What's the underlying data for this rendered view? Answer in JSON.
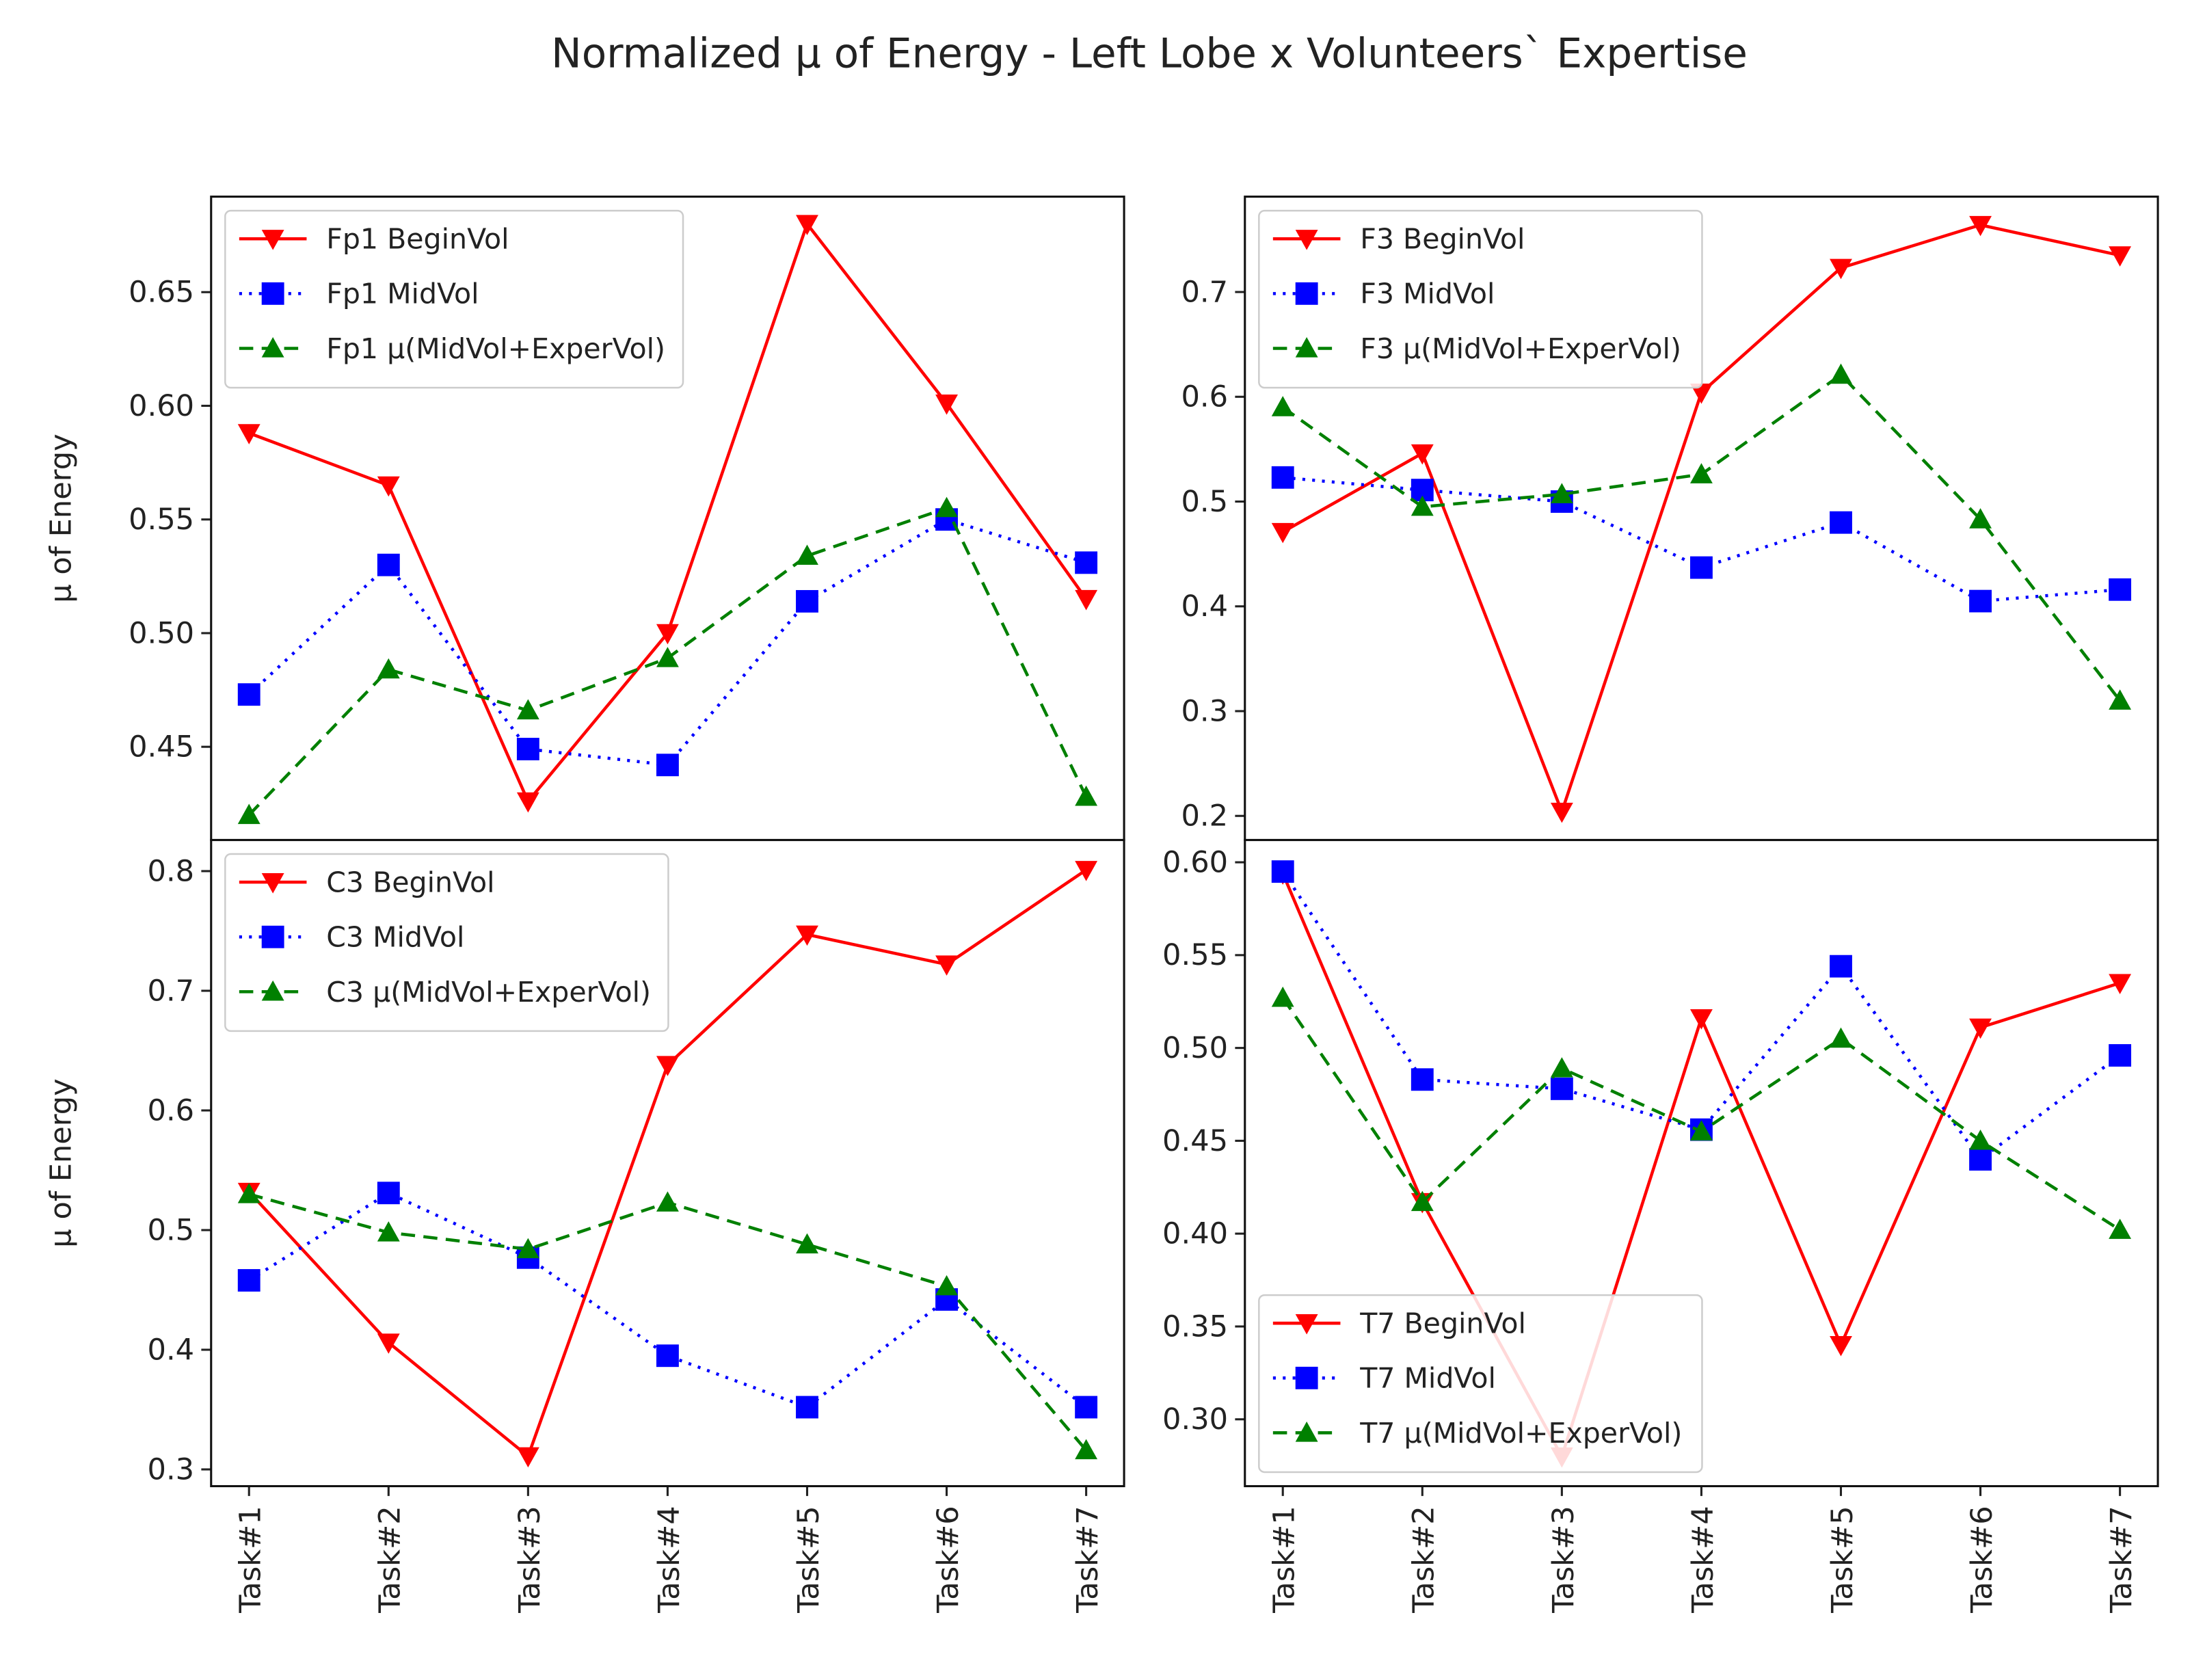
{
  "title": "Normalized μ of Energy - Left Lobe x Volunteers` Expertise",
  "colors": {
    "BeginVol": "#ff0000",
    "MidVol": "#0000ff",
    "Mu": "#008000"
  },
  "chart_data": [
    {
      "type": "line",
      "ylabel": "μ of Energy",
      "categories": [
        "Task#1",
        "Task#2",
        "Task#3",
        "Task#4",
        "Task#5",
        "Task#6",
        "Task#7"
      ],
      "show_xticks": false,
      "ylim": [
        0.409,
        0.692
      ],
      "yticks": [
        0.45,
        0.5,
        0.55,
        0.6,
        0.65
      ],
      "ytick_labels": [
        "0.45",
        "0.50",
        "0.55",
        "0.60",
        "0.65"
      ],
      "legend_placement": "top-left",
      "series": [
        {
          "name": "Fp1 BeginVol",
          "style": "solid",
          "marker": "triangle-down",
          "color": "#ff0000",
          "values": [
            0.588,
            0.565,
            0.426,
            0.5,
            0.68,
            0.601,
            0.515
          ]
        },
        {
          "name": "Fp1 MidVol",
          "style": "dotted",
          "marker": "square",
          "color": "#0000ff",
          "values": [
            0.473,
            0.53,
            0.449,
            0.442,
            0.514,
            0.55,
            0.531
          ]
        },
        {
          "name": "Fp1 μ(MidVol+ExperVol)",
          "style": "dashed",
          "marker": "triangle-up",
          "color": "#008000",
          "values": [
            0.42,
            0.484,
            0.466,
            0.489,
            0.534,
            0.555,
            0.428
          ]
        }
      ]
    },
    {
      "type": "line",
      "ylabel": "",
      "categories": [
        "Task#1",
        "Task#2",
        "Task#3",
        "Task#4",
        "Task#5",
        "Task#6",
        "Task#7"
      ],
      "show_xticks": false,
      "ylim": [
        0.177,
        0.791
      ],
      "yticks": [
        0.2,
        0.3,
        0.4,
        0.5,
        0.6,
        0.7
      ],
      "ytick_labels": [
        "0.2",
        "0.3",
        "0.4",
        "0.5",
        "0.6",
        "0.7"
      ],
      "legend_placement": "top-left",
      "series": [
        {
          "name": "F3 BeginVol",
          "style": "solid",
          "marker": "triangle-down",
          "color": "#ff0000",
          "values": [
            0.471,
            0.546,
            0.204,
            0.604,
            0.723,
            0.764,
            0.735
          ]
        },
        {
          "name": "F3 MidVol",
          "style": "dotted",
          "marker": "square",
          "color": "#0000ff",
          "values": [
            0.523,
            0.511,
            0.5,
            0.437,
            0.48,
            0.405,
            0.416
          ]
        },
        {
          "name": "F3 μ(MidVol+ExperVol)",
          "style": "dashed",
          "marker": "triangle-up",
          "color": "#008000",
          "values": [
            0.59,
            0.495,
            0.507,
            0.526,
            0.621,
            0.483,
            0.31
          ]
        }
      ]
    },
    {
      "type": "line",
      "ylabel": "μ of Energy",
      "categories": [
        "Task#1",
        "Task#2",
        "Task#3",
        "Task#4",
        "Task#5",
        "Task#6",
        "Task#7"
      ],
      "show_xticks": true,
      "ylim": [
        0.286,
        0.826
      ],
      "yticks": [
        0.3,
        0.4,
        0.5,
        0.6,
        0.7,
        0.8
      ],
      "ytick_labels": [
        "0.3",
        "0.4",
        "0.5",
        "0.6",
        "0.7",
        "0.8"
      ],
      "legend_placement": "top-left",
      "series": [
        {
          "name": "C3 BeginVol",
          "style": "solid",
          "marker": "triangle-down",
          "color": "#ff0000",
          "values": [
            0.532,
            0.406,
            0.311,
            0.638,
            0.747,
            0.722,
            0.801
          ]
        },
        {
          "name": "C3 MidVol",
          "style": "dotted",
          "marker": "square",
          "color": "#0000ff",
          "values": [
            0.458,
            0.531,
            0.477,
            0.395,
            0.352,
            0.442,
            0.352
          ]
        },
        {
          "name": "C3 μ(MidVol+ExperVol)",
          "style": "dashed",
          "marker": "triangle-up",
          "color": "#008000",
          "values": [
            0.53,
            0.498,
            0.484,
            0.523,
            0.488,
            0.453,
            0.316
          ]
        }
      ]
    },
    {
      "type": "line",
      "ylabel": "",
      "categories": [
        "Task#1",
        "Task#2",
        "Task#3",
        "Task#4",
        "Task#5",
        "Task#6",
        "Task#7"
      ],
      "show_xticks": true,
      "ylim": [
        0.264,
        0.612
      ],
      "yticks": [
        0.3,
        0.35,
        0.4,
        0.45,
        0.5,
        0.55,
        0.6
      ],
      "ytick_labels": [
        "0.30",
        "0.35",
        "0.40",
        "0.45",
        "0.50",
        "0.55",
        "0.60"
      ],
      "legend_placement": "bottom-left",
      "series": [
        {
          "name": "T7 BeginVol",
          "style": "solid",
          "marker": "triangle-down",
          "color": "#ff0000",
          "values": [
            0.594,
            0.417,
            0.28,
            0.516,
            0.34,
            0.511,
            0.535
          ]
        },
        {
          "name": "T7 MidVol",
          "style": "dotted",
          "marker": "square",
          "color": "#0000ff",
          "values": [
            0.595,
            0.483,
            0.478,
            0.456,
            0.544,
            0.44,
            0.496
          ]
        },
        {
          "name": "T7 μ(MidVol+ExperVol)",
          "style": "dashed",
          "marker": "triangle-up",
          "color": "#008000",
          "values": [
            0.527,
            0.417,
            0.489,
            0.455,
            0.505,
            0.45,
            0.402
          ]
        }
      ]
    }
  ]
}
